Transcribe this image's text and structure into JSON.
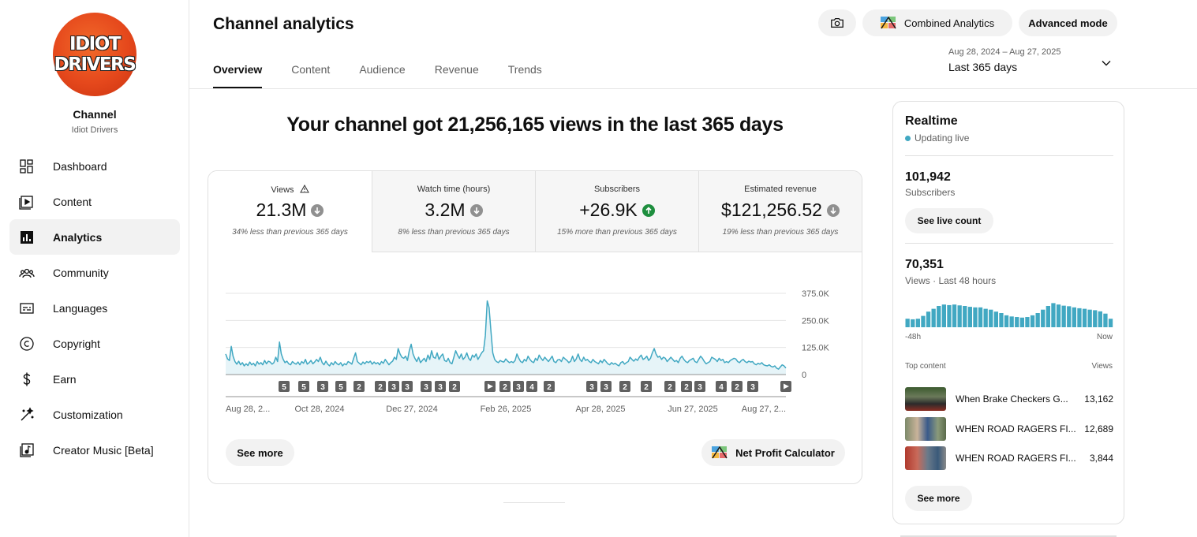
{
  "channel": {
    "logo_line1": "IDIOT",
    "logo_line2": "DRIVERS",
    "label": "Channel",
    "name": "Idiot Drivers"
  },
  "sidebar": {
    "items": [
      {
        "label": "Dashboard",
        "icon": "dashboard-icon"
      },
      {
        "label": "Content",
        "icon": "content-icon"
      },
      {
        "label": "Analytics",
        "icon": "analytics-icon",
        "active": true
      },
      {
        "label": "Community",
        "icon": "community-icon"
      },
      {
        "label": "Languages",
        "icon": "languages-icon"
      },
      {
        "label": "Copyright",
        "icon": "copyright-icon"
      },
      {
        "label": "Earn",
        "icon": "earn-icon"
      },
      {
        "label": "Customization",
        "icon": "customization-icon"
      },
      {
        "label": "Creator Music [Beta]",
        "icon": "creator-music-icon"
      }
    ]
  },
  "header": {
    "title": "Channel analytics",
    "tabs": [
      "Overview",
      "Content",
      "Audience",
      "Revenue",
      "Trends"
    ],
    "combined_label": "Combined Analytics",
    "advanced_label": "Advanced mode",
    "date_range": "Aug 28, 2024 – Aug 27, 2025",
    "date_label": "Last 365 days"
  },
  "headline": "Your channel got 21,256,165 views in the last 365 days",
  "metrics": [
    {
      "label": "Views",
      "value": "21.3M",
      "change": "34% less than previous 365 days",
      "direction": "down"
    },
    {
      "label": "Watch time (hours)",
      "value": "3.2M",
      "change": "8% less than previous 365 days",
      "direction": "down"
    },
    {
      "label": "Subscribers",
      "value": "+26.9K",
      "change": "15% more than previous 365 days",
      "direction": "up"
    },
    {
      "label": "Estimated revenue",
      "value": "$121,256.52",
      "change": "19% less than previous 365 days",
      "direction": "down"
    }
  ],
  "colors": {
    "line": "#41a8c2",
    "fill": "#e6f4f8",
    "up": "#1e8e3e",
    "down": "#909090",
    "marker": "#606060"
  },
  "chart_data": {
    "type": "line",
    "x_ticks": [
      "Aug 28, 2...",
      "Oct 28, 2024",
      "Dec 27, 2024",
      "Feb 26, 2025",
      "Apr 28, 2025",
      "Jun 27, 2025",
      "Aug 27, 2..."
    ],
    "y_ticks": [
      "375.0K",
      "250.0K",
      "125.0K",
      "0"
    ],
    "ylim": [
      0,
      375000
    ],
    "grid": true,
    "series": [
      {
        "values": [
          95000,
          72000,
          65000,
          130000,
          85000,
          60000,
          48000,
          62000,
          45000,
          55000,
          40000,
          50000,
          42000,
          58000,
          45000,
          52000,
          40000,
          60000,
          48000,
          55000,
          45000,
          65000,
          50000,
          62000,
          58000,
          48000,
          55000,
          80000,
          60000,
          150000,
          95000,
          70000,
          55000,
          62000,
          50000,
          45000,
          60000,
          52000,
          48000,
          58000,
          45000,
          60000,
          52000,
          70000,
          48000,
          55000,
          65000,
          50000,
          58000,
          70000,
          60000,
          80000,
          55000,
          45000,
          62000,
          48000,
          40000,
          55000,
          45000,
          60000,
          50000,
          45000,
          55000,
          40000,
          50000,
          45000,
          60000,
          55000,
          48000,
          75000,
          100000,
          60000,
          52000,
          45000,
          58000,
          50000,
          60000,
          55000,
          62000,
          48000,
          58000,
          50000,
          55000,
          45000,
          60000,
          52000,
          70000,
          58000,
          45000,
          55000,
          62000,
          80000,
          70000,
          120000,
          95000,
          80000,
          75000,
          85000,
          65000,
          110000,
          140000,
          95000,
          75000,
          60000,
          80000,
          55000,
          65000,
          75000,
          60000,
          90000,
          70000,
          110000,
          80000,
          75000,
          100000,
          70000,
          85000,
          95000,
          65000,
          60000,
          75000,
          55000,
          50000,
          80000,
          110000,
          90000,
          75000,
          95000,
          70000,
          80000,
          100000,
          75000,
          65000,
          90000,
          80000,
          95000,
          70000,
          85000,
          100000,
          110000,
          180000,
          340000,
          310000,
          200000,
          100000,
          70000,
          60000,
          55000,
          65000,
          60000,
          58000,
          72000,
          62000,
          55000,
          60000,
          55000,
          65000,
          95000,
          75000,
          60000,
          55000,
          70000,
          62000,
          85000,
          70000,
          60000,
          55000,
          75000,
          65000,
          90000,
          75000,
          65000,
          80000,
          70000,
          60000,
          72000,
          85000,
          60000,
          55000,
          68000,
          70000,
          60000,
          80000,
          72000,
          65000,
          55000,
          62000,
          85000,
          60000,
          72000,
          95000,
          70000,
          60000,
          80000,
          65000,
          70000,
          60000,
          55000,
          70000,
          60000,
          55000,
          50000,
          65000,
          55000,
          70000,
          60000,
          50000,
          45000,
          55000,
          48000,
          52000,
          45000,
          40000,
          55000,
          60000,
          48000,
          55000,
          60000,
          80000,
          70000,
          62000,
          72000,
          65000,
          80000,
          90000,
          70000,
          75000,
          85000,
          65000,
          75000,
          100000,
          120000,
          95000,
          80000,
          85000,
          70000,
          80000,
          75000,
          60000,
          70000,
          80000,
          70000,
          60000,
          65000,
          55000,
          75000,
          85000,
          70000,
          60000,
          55000,
          65000,
          70000,
          75000,
          60000,
          55000,
          70000,
          85000,
          75000,
          60000,
          50000,
          55000,
          60000,
          80000,
          75000,
          70000,
          60000,
          75000,
          65000,
          70000,
          55000,
          60000,
          55000,
          65000,
          70000,
          75000,
          72000,
          60000,
          55000,
          65000,
          70000,
          60000,
          55000,
          62000,
          58000,
          60000,
          50000,
          45000,
          52000,
          48000,
          55000,
          45000,
          42000,
          40000,
          45000,
          38000,
          35000,
          40000,
          30000,
          25000,
          35000,
          45000,
          40000,
          30000
        ]
      }
    ],
    "markers": [
      "5",
      "5",
      "3",
      "5",
      "2",
      "2",
      "3",
      "3",
      "3",
      "3",
      "2",
      "play",
      "2",
      "3",
      "4",
      "2",
      "3",
      "3",
      "2",
      "2",
      "2",
      "2",
      "3",
      "4",
      "2",
      "3",
      "play"
    ]
  },
  "buttons": {
    "see_more": "See more",
    "net_profit": "Net Profit Calculator"
  },
  "realtime": {
    "title": "Realtime",
    "live": "Updating live",
    "subscribers_value": "101,942",
    "subscribers_label": "Subscribers",
    "see_live_count": "See live count",
    "views_value": "70,351",
    "views_label": "Views · Last 48 hours",
    "axis_left": "-48h",
    "axis_right": "Now",
    "bars": [
      0.3,
      0.28,
      0.3,
      0.4,
      0.55,
      0.65,
      0.75,
      0.8,
      0.78,
      0.8,
      0.77,
      0.75,
      0.72,
      0.7,
      0.7,
      0.65,
      0.62,
      0.55,
      0.5,
      0.42,
      0.38,
      0.36,
      0.34,
      0.36,
      0.42,
      0.5,
      0.62,
      0.75,
      0.85,
      0.8,
      0.76,
      0.74,
      0.7,
      0.67,
      0.65,
      0.62,
      0.6,
      0.56,
      0.48,
      0.3
    ],
    "top_content_label": "Top content",
    "views_col_label": "Views",
    "top_content": [
      {
        "title": "When Brake Checkers G...",
        "views": "13,162"
      },
      {
        "title": "WHEN ROAD RAGERS FI...",
        "views": "12,689"
      },
      {
        "title": "WHEN ROAD RAGERS FI...",
        "views": "3,844"
      }
    ],
    "see_more": "See more"
  }
}
